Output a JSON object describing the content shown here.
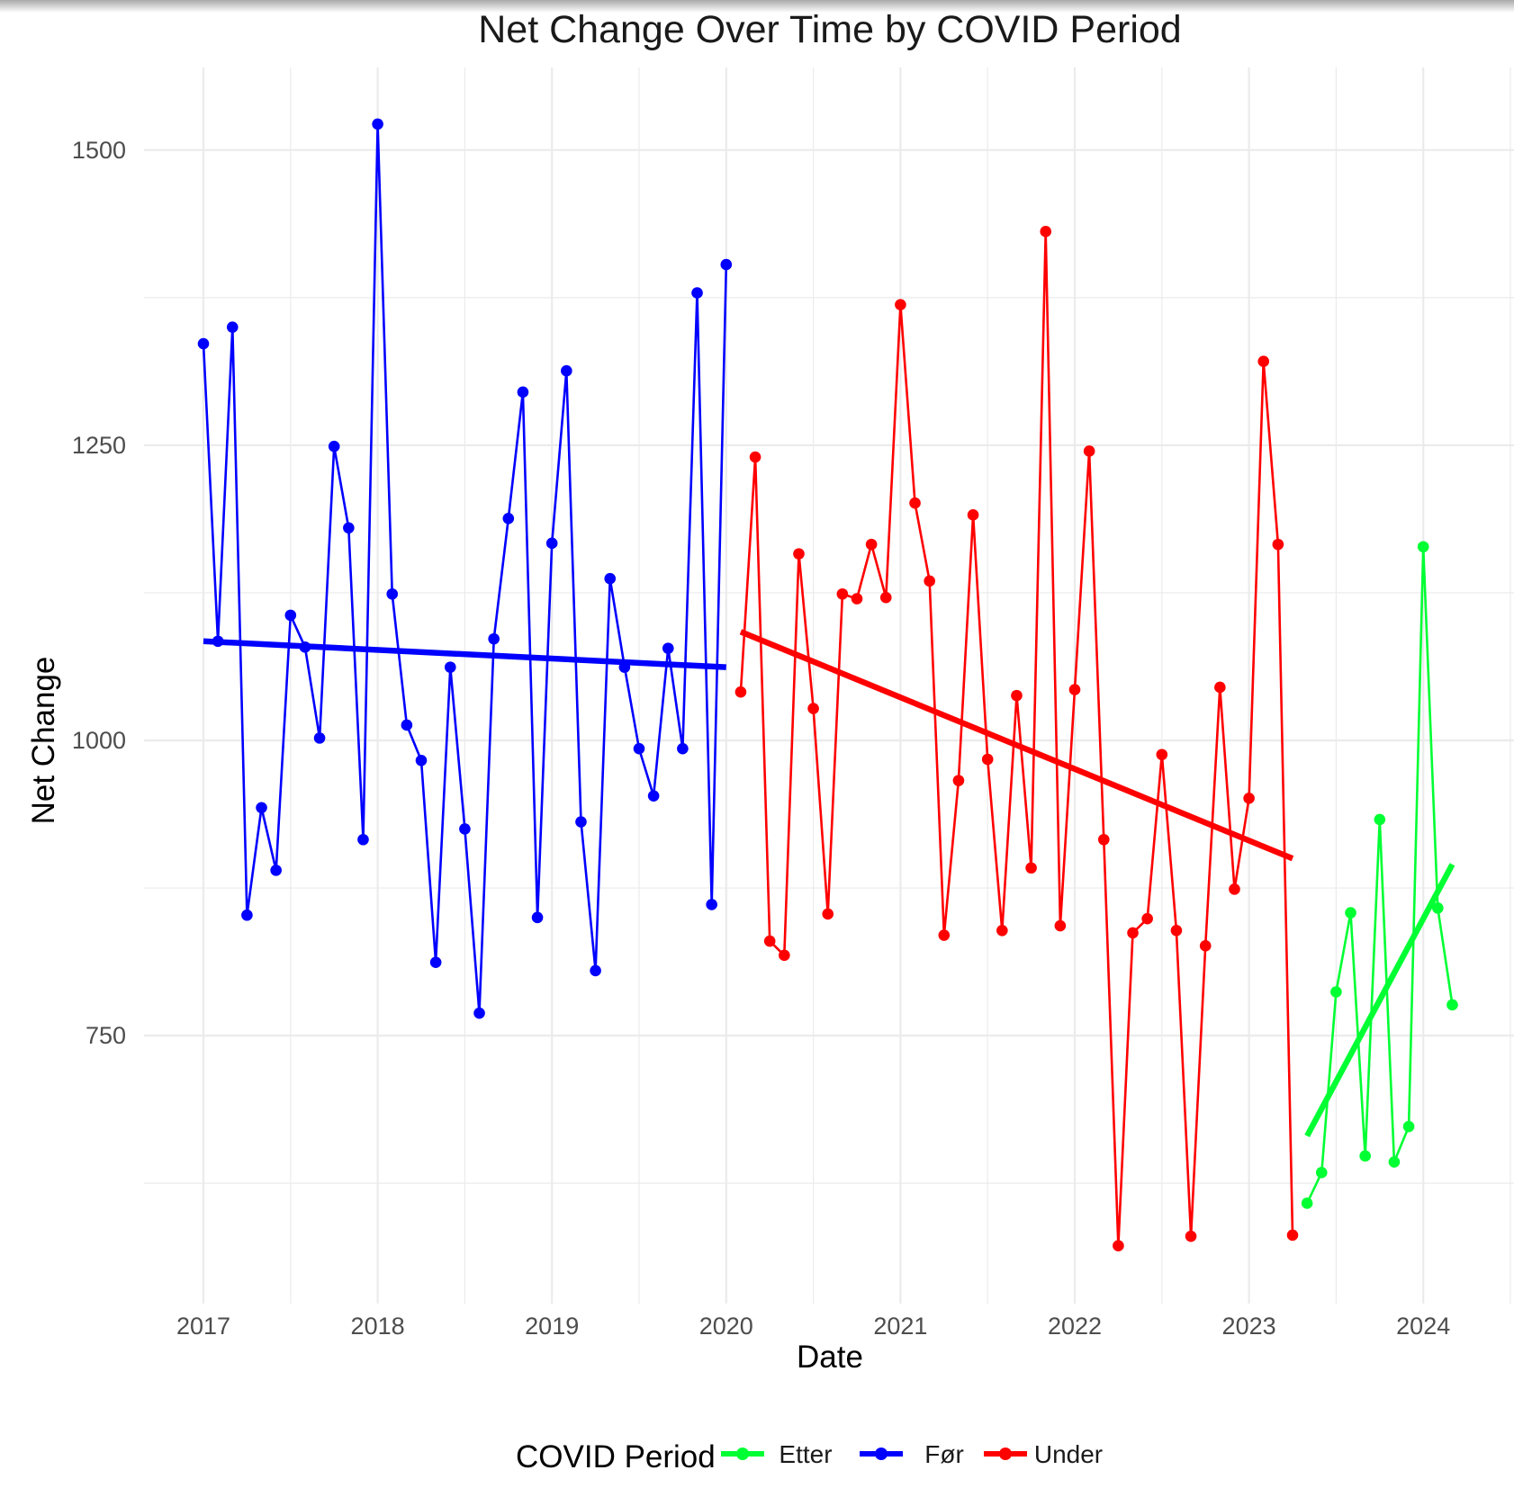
{
  "chart_data": {
    "type": "line",
    "title": "Net Change Over Time by COVID Period",
    "xlabel": "Date",
    "ylabel": "Net Change",
    "x_ticks": [
      {
        "label": "2017",
        "value": 2017
      },
      {
        "label": "2018",
        "value": 2018
      },
      {
        "label": "2019",
        "value": 2019
      },
      {
        "label": "2020",
        "value": 2020
      },
      {
        "label": "2021",
        "value": 2021
      },
      {
        "label": "2022",
        "value": 2022
      },
      {
        "label": "2023",
        "value": 2023
      },
      {
        "label": "2024",
        "value": 2024
      }
    ],
    "y_ticks": [
      {
        "label": "750",
        "value": 750
      },
      {
        "label": "1000",
        "value": 1000
      },
      {
        "label": "1250",
        "value": 1250
      },
      {
        "label": "1500",
        "value": 1500
      }
    ],
    "xlim": [
      2016.65,
      2024.55
    ],
    "ylim": [
      520,
      1565
    ],
    "grid": true,
    "legend": {
      "title": "COVID Period",
      "position": "bottom"
    },
    "series": [
      {
        "name": "Før",
        "color": "#0000ff",
        "x": [
          "2017-01",
          "2017-02",
          "2017-03",
          "2017-04",
          "2017-05",
          "2017-06",
          "2017-07",
          "2017-08",
          "2017-09",
          "2017-10",
          "2017-11",
          "2017-12",
          "2018-01",
          "2018-02",
          "2018-03",
          "2018-04",
          "2018-05",
          "2018-06",
          "2018-07",
          "2018-08",
          "2018-09",
          "2018-10",
          "2018-11",
          "2018-12",
          "2019-01",
          "2019-02",
          "2019-03",
          "2019-04",
          "2019-05",
          "2019-06",
          "2019-07",
          "2019-08",
          "2019-09",
          "2019-10",
          "2019-11",
          "2019-12",
          "2020-01"
        ],
        "values": [
          1336,
          1084,
          1350,
          852,
          943,
          890,
          1106,
          1079,
          1002,
          1249,
          1180,
          916,
          1522,
          1124,
          1013,
          983,
          812,
          1062,
          925,
          769,
          1086,
          1188,
          1295,
          850,
          1167,
          1313,
          931,
          805,
          1137,
          1062,
          993,
          953,
          1078,
          993,
          1379,
          861,
          1403
        ],
        "trend": {
          "x": [
            "2017-01",
            "2020-01"
          ],
          "values": [
            1084,
            1062
          ]
        }
      },
      {
        "name": "Under",
        "color": "#ff0000",
        "x": [
          "2020-02",
          "2020-03",
          "2020-04",
          "2020-05",
          "2020-06",
          "2020-07",
          "2020-08",
          "2020-09",
          "2020-10",
          "2020-11",
          "2020-12",
          "2021-01",
          "2021-02",
          "2021-03",
          "2021-04",
          "2021-05",
          "2021-06",
          "2021-07",
          "2021-08",
          "2021-09",
          "2021-10",
          "2021-11",
          "2021-12",
          "2022-01",
          "2022-02",
          "2022-03",
          "2022-04",
          "2022-05",
          "2022-06",
          "2022-07",
          "2022-08",
          "2022-09",
          "2022-10",
          "2022-11",
          "2022-12",
          "2023-01",
          "2023-02",
          "2023-03",
          "2023-04"
        ],
        "values": [
          1041,
          1240,
          830,
          818,
          1158,
          1027,
          853,
          1124,
          1120,
          1166,
          1121,
          1369,
          1201,
          1135,
          835,
          966,
          1191,
          984,
          839,
          1038,
          892,
          1431,
          843,
          1043,
          1245,
          916,
          572,
          837,
          849,
          988,
          839,
          580,
          826,
          1045,
          874,
          951,
          1321,
          1166,
          581
        ],
        "trend": {
          "x": [
            "2020-02",
            "2023-04"
          ],
          "values": [
            1092,
            900
          ]
        }
      },
      {
        "name": "Etter",
        "color": "#00ff33",
        "x": [
          "2023-05",
          "2023-06",
          "2023-07",
          "2023-08",
          "2023-09",
          "2023-10",
          "2023-11",
          "2023-12",
          "2024-01",
          "2024-02",
          "2024-03"
        ],
        "values": [
          608,
          634,
          787,
          854,
          648,
          933,
          643,
          673,
          1164,
          858,
          776
        ],
        "trend": {
          "x": [
            "2023-05",
            "2024-03"
          ],
          "values": [
            665,
            895
          ]
        }
      }
    ],
    "legend_order": [
      "Etter",
      "Før",
      "Under"
    ]
  }
}
